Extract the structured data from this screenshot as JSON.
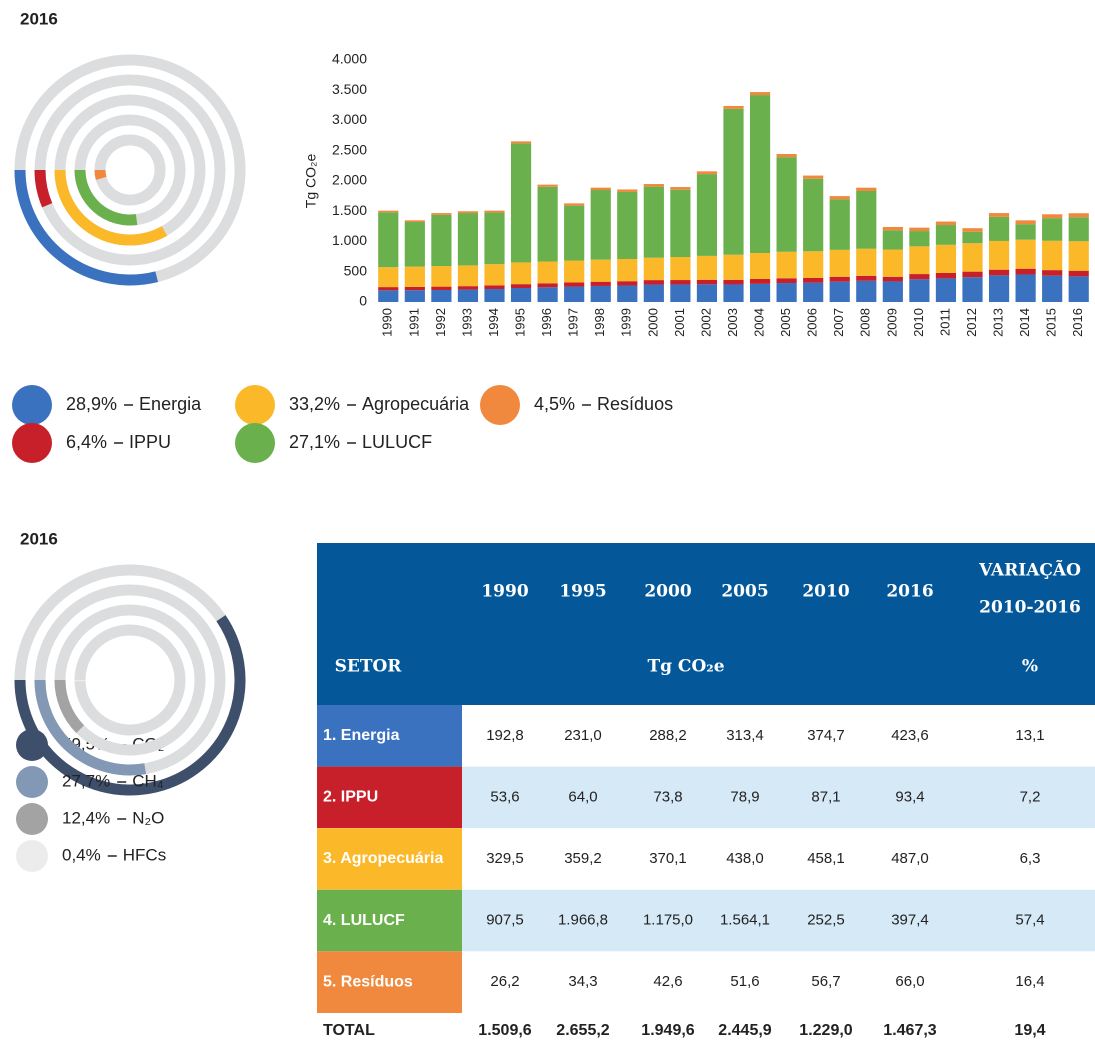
{
  "chart_data": [
    {
      "type": "radial",
      "title": "2016",
      "categories": [
        "Energia",
        "IPPU",
        "Agropecuária",
        "LULUCF",
        "Resíduos"
      ],
      "values": [
        28.9,
        6.4,
        33.2,
        27.1,
        4.5
      ],
      "value_labels": [
        "28,9%",
        "6,4%",
        "33,2%",
        "27,1%",
        "4,5%"
      ],
      "colors": [
        "#3b72c0",
        "#c8202a",
        "#fbb829",
        "#6ab04c",
        "#f0883e"
      ]
    },
    {
      "type": "bar",
      "stacked": true,
      "y_label": "Tg CO₂e",
      "categories": [
        "1990",
        "1991",
        "1992",
        "1993",
        "1994",
        "1995",
        "1996",
        "1997",
        "1998",
        "1999",
        "2000",
        "2001",
        "2002",
        "2003",
        "2004",
        "2005",
        "2006",
        "2007",
        "2008",
        "2009",
        "2010",
        "2011",
        "2012",
        "2013",
        "2014",
        "2015",
        "2016"
      ],
      "series": [
        {
          "color": "#3b72c0",
          "values": [
            192.8,
            195,
            198,
            205,
            215,
            231.0,
            243,
            255,
            265,
            272,
            288.2,
            290,
            292,
            290,
            300,
            313.4,
            318,
            335,
            350,
            340,
            374.7,
            390,
            410,
            440,
            455,
            435,
            423.6
          ]
        },
        {
          "color": "#c8202a",
          "values": [
            53.6,
            55,
            56,
            57,
            60,
            64.0,
            66,
            68,
            70,
            72,
            73.8,
            73,
            75,
            77,
            80,
            78.9,
            80,
            82,
            82,
            76,
            87.1,
            90,
            92,
            94,
            95,
            92,
            93.4
          ]
        },
        {
          "color": "#fbb829",
          "values": [
            329.5,
            335,
            340,
            343,
            350,
            359.2,
            360,
            362,
            365,
            367,
            370.1,
            380,
            395,
            415,
            430,
            438.0,
            440,
            445,
            448,
            452,
            458.1,
            465,
            470,
            475,
            480,
            485,
            487.0
          ]
        },
        {
          "color": "#6ab04c",
          "values": [
            907.5,
            737,
            847,
            865,
            853,
            1966.8,
            1235,
            908,
            1151,
            1108,
            1175.0,
            1113,
            1352,
            2410,
            2610,
            1564.1,
            1199,
            834,
            955,
            316,
            252.5,
            327,
            188,
            399,
            257,
            374,
            397.4
          ]
        },
        {
          "color": "#f0883e",
          "values": [
            26.2,
            28,
            29,
            30,
            32,
            34.3,
            36,
            37,
            39,
            41,
            42.6,
            44,
            46,
            48,
            50,
            51.6,
            53,
            54,
            55,
            56,
            56.7,
            58,
            60,
            62,
            63,
            64,
            66.0
          ]
        }
      ],
      "ylim": [
        0,
        4000
      ],
      "yticks": [
        0,
        500,
        {
          "value": 1000,
          "label": "1.000"
        },
        {
          "value": 1500,
          "label": "1.500"
        },
        {
          "value": 2000,
          "label": "2.000"
        },
        {
          "value": 2500,
          "label": "2.500"
        },
        {
          "value": 3000,
          "label": "3.000"
        },
        {
          "value": 3500,
          "label": "3.500"
        },
        {
          "value": 4000,
          "label": "4.000"
        }
      ],
      "grid": false
    },
    {
      "type": "radial",
      "title": "2016",
      "categories": [
        "CO₂",
        "CH₄",
        "N₂O",
        "HFCs"
      ],
      "values": [
        59.5,
        27.7,
        12.4,
        0.4
      ],
      "value_labels": [
        "59,5%",
        "27,7%",
        "12,4%",
        "0,4%"
      ],
      "colors": [
        "#3d4f6a",
        "#8298b5",
        "#a3a3a3",
        "#ececec"
      ]
    }
  ],
  "table": {
    "setor": "SETOR",
    "columns": [
      "1990",
      "1995",
      "2000",
      "2005",
      "2010",
      "2016"
    ],
    "variation_header": [
      "VARIAÇÃO",
      "2010-2016"
    ],
    "unit": "Tg CO₂e",
    "percent": "%",
    "row_colors": [
      "#3b72c0",
      "#c8202a",
      "#fbb829",
      "#6ab04c",
      "#f0883e"
    ],
    "rows": [
      [
        "1. Energia",
        "192,8",
        "231,0",
        "288,2",
        "313,4",
        "374,7",
        "423,6",
        "13,1"
      ],
      [
        "2. IPPU",
        "53,6",
        "64,0",
        "73,8",
        "78,9",
        "87,1",
        "93,4",
        "7,2"
      ],
      [
        "3. Agropecuária",
        "329,5",
        "359,2",
        "370,1",
        "438,0",
        "458,1",
        "487,0",
        "6,3"
      ],
      [
        "4. LULUCF",
        "907,5",
        "1.966,8",
        "1.175,0",
        "1.564,1",
        "252,5",
        "397,4",
        "57,4"
      ],
      [
        "5. Resíduos",
        "26,2",
        "34,3",
        "42,6",
        "51,6",
        "56,7",
        "66,0",
        "16,4"
      ]
    ],
    "total": [
      "TOTAL",
      "1.509,6",
      "2.655,2",
      "1.949,6",
      "2.445,9",
      "1.229,0",
      "1.467,3",
      "19,4"
    ]
  }
}
